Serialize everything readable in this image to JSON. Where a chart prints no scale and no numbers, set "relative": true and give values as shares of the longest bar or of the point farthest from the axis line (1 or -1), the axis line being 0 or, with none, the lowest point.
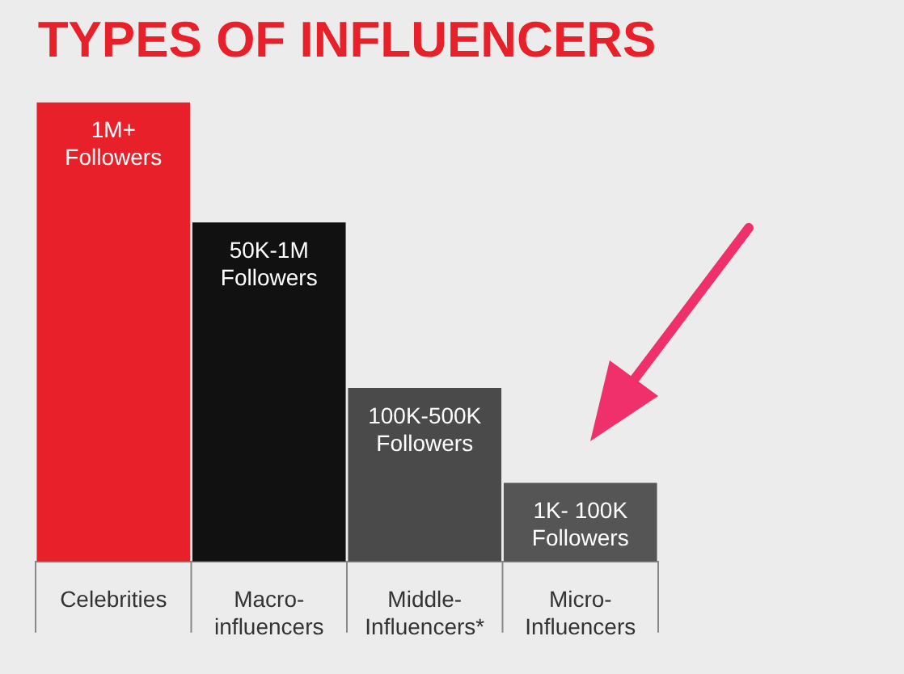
{
  "chart_data": {
    "type": "bar",
    "title": "TYPES OF INFLUENCERS",
    "relative": true,
    "categories": [
      "Celebrities",
      "Macro-influencers",
      "Middle-Influencers*",
      "Micro-Influencers"
    ],
    "values": [
      1,
      0.738,
      0.378,
      0.171
    ],
    "colors": [
      "#e8202a",
      "#111111",
      "#4a4a4a",
      "#555555"
    ],
    "annotations": [
      {
        "text": "1M+ Followers",
        "x": "Celebrities",
        "y": 1
      },
      {
        "text": "50K-1M Followers",
        "x": "Macro-influencers",
        "y": 0.738
      },
      {
        "text": "100K-500K Followers",
        "x": "Middle-Influencers*",
        "y": 0.378
      },
      {
        "text": "1K- 100K Followers",
        "x": "Micro-Influencers",
        "y": 0.171
      }
    ],
    "legend": false
  }
}
